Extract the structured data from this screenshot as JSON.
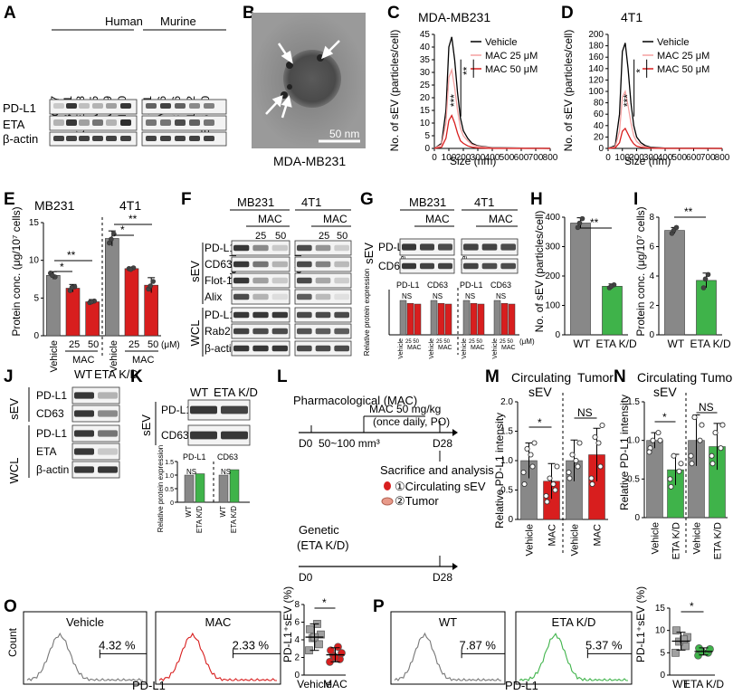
{
  "panels": {
    "A": {
      "label": "A",
      "group1": "Human",
      "group2": "Murine",
      "cell_lines": [
        "MCF7",
        "MB231",
        "SKMEL28",
        "A375",
        "A549",
        "H460",
        "4T1",
        "EMT6",
        "CT26",
        "LL/2",
        "B16F10"
      ],
      "rows": [
        "PD-L1",
        "ETA",
        "β-actin"
      ]
    },
    "B": {
      "label": "B",
      "caption": "MDA-MB231",
      "scale": "50 nm"
    },
    "C": {
      "label": "C",
      "title": "MDA-MB231",
      "xlabel": "Size (nm)",
      "ylabel": "No. of sEV (particles/cell)",
      "sig1": "***",
      "sig2": "**",
      "legend": [
        "Vehicle",
        "MAC 25 μM",
        "MAC 50 μM"
      ],
      "xticks": [
        "0",
        "100",
        "200",
        "300",
        "400",
        "500",
        "600",
        "700",
        "800"
      ],
      "yticks": [
        "0",
        "5",
        "10",
        "15",
        "20",
        "25",
        "30",
        "35",
        "40",
        "45"
      ]
    },
    "D": {
      "label": "D",
      "title": "4T1",
      "xlabel": "Size (nm)",
      "ylabel": "No. of sEV (particles/cell)",
      "sig1": "***",
      "sig2": "*",
      "legend": [
        "Vehicle",
        "MAC 25 μM",
        "MAC 50 μM"
      ],
      "xticks": [
        "0",
        "100",
        "200",
        "300",
        "400",
        "500",
        "600",
        "700",
        "800"
      ],
      "yticks": [
        "0",
        "20",
        "40",
        "60",
        "80",
        "100",
        "120",
        "140",
        "160",
        "180",
        "200"
      ]
    },
    "E": {
      "label": "E",
      "ylabel": "Protein conc. (μg/10⁷ cells)",
      "group1": "MB231",
      "group2": "4T1",
      "yticks": [
        "0",
        "5",
        "10",
        "15"
      ],
      "xlabels": [
        "Vehicle",
        "25",
        "50",
        "Vehicle",
        "25",
        "50"
      ],
      "unit": "(μM)",
      "mac": "MAC",
      "sig": [
        "**",
        "*",
        "**",
        "*"
      ]
    },
    "F": {
      "label": "F",
      "group1": "MB231",
      "group2": "4T1",
      "mac": "MAC",
      "vehicle": "Vehicle",
      "doses": [
        "25",
        "50",
        "25",
        "50"
      ],
      "sev": "sEV",
      "wcl": "WCL",
      "rows": [
        "PD-L1",
        "CD63",
        "Flot-1",
        "Alix",
        "PD-L1",
        "Rab27a",
        "β-actin"
      ]
    },
    "G": {
      "label": "G",
      "group1": "MB231",
      "group2": "4T1",
      "mac": "MAC",
      "vehicle": "Vehicle",
      "sev": "sEV",
      "rows": [
        "PD-L1",
        "CD63"
      ],
      "ylabel": "Relative protein expression",
      "sub": [
        "PD-L1",
        "CD63",
        "PD-L1",
        "CD63"
      ],
      "ns": "NS",
      "doses": "25 50",
      "unit": "(μM)"
    },
    "H": {
      "label": "H",
      "ylabel": "No. of sEV (particles/cell)",
      "yticks": [
        "0",
        "100",
        "200",
        "300",
        "400"
      ],
      "xlabels": [
        "WT",
        "ETA K/D"
      ],
      "sig": "**"
    },
    "I": {
      "label": "I",
      "ylabel": "Protein conc. (μg/10⁷ cells)",
      "yticks": [
        "0",
        "2",
        "4",
        "6",
        "8"
      ],
      "xlabels": [
        "WT",
        "ETA K/D"
      ],
      "sig": "**"
    },
    "J": {
      "label": "J",
      "cols": [
        "WT",
        "ETA K/D"
      ],
      "sev": "sEV",
      "wcl": "WCL",
      "rows": [
        "PD-L1",
        "CD63",
        "PD-L1",
        "ETA",
        "β-actin"
      ]
    },
    "K": {
      "label": "K",
      "cols": [
        "WT",
        "ETA K/D"
      ],
      "sev": "sEV",
      "rows": [
        "PD-L1",
        "CD63"
      ],
      "sub": [
        "PD-L1",
        "CD63"
      ],
      "ylabel": "Relative protein expression",
      "ns": "NS",
      "yticks": [
        "0",
        "0.5",
        "1.0",
        "1.5"
      ],
      "xlabels": [
        "WT",
        "ETA K/D",
        "WT",
        "ETA K/D"
      ]
    },
    "L": {
      "label": "L",
      "pharm": "Pharmacological (MAC)",
      "dose": "MAC 50 mg/kg",
      "dose2": "(once daily, PO)",
      "d0": "D0",
      "d28": "D28",
      "vol": "50~100 mm³",
      "analysis": "Sacrifice and analysis",
      "a1": "①Circulating sEV",
      "a2": "②Tumor",
      "genetic": "Genetic",
      "genetic2": "(ETA K/D)"
    },
    "M": {
      "label": "M",
      "ylabel": "Relative PD-L1 intensity",
      "h1": "Circulating",
      "h1b": "sEV",
      "h2": "Tumor",
      "yticks": [
        "0",
        "0.5",
        "1.0",
        "1.5",
        "2.0"
      ],
      "xlabels": [
        "Vehicle",
        "MAC",
        "Vehicle",
        "MAC"
      ],
      "sig": "*",
      "ns": "NS"
    },
    "N": {
      "label": "N",
      "ylabel": "Relative PD-L1 intensity",
      "h1": "Circulating",
      "h1b": "sEV",
      "h2": "Tumor",
      "yticks": [
        "0",
        "0.5",
        "1.0",
        "1.5"
      ],
      "xlabels": [
        "Vehicle",
        "ETA K/D",
        "Vehicle",
        "ETA K/D"
      ],
      "sig": "*",
      "ns": "NS"
    },
    "O": {
      "label": "O",
      "boxes": [
        "Vehicle",
        "MAC"
      ],
      "pct": [
        "4.32 %",
        "2.33 %"
      ],
      "ylabel_hist": "Count",
      "xlabel_hist": "PD-L1",
      "ylabel": "PD-L1⁺sEV (%)",
      "yticks": [
        "0",
        "2",
        "4",
        "6",
        "8"
      ],
      "xlabels": [
        "Vehicle",
        "MAC"
      ],
      "sig": "*"
    },
    "P": {
      "label": "P",
      "boxes": [
        "WT",
        "ETA K/D"
      ],
      "pct": [
        "7.87 %",
        "5.37 %"
      ],
      "ylabel_hist": "Count",
      "xlabel_hist": "PD-L1",
      "ylabel": "PD-L1⁺sEV (%)",
      "yticks": [
        "0",
        "5",
        "10",
        "15"
      ],
      "xlabels": [
        "WT",
        "ETA K/D"
      ],
      "sig": "*"
    }
  },
  "chart_data": [
    {
      "type": "line",
      "title": "MDA-MB231",
      "xlabel": "Size (nm)",
      "ylabel": "No. of sEV (particles/cell)",
      "xlim": [
        0,
        800
      ],
      "ylim": [
        0,
        45
      ],
      "x": [
        0,
        50,
        80,
        100,
        120,
        140,
        160,
        180,
        200,
        230,
        260,
        300,
        400,
        800
      ],
      "series": [
        {
          "name": "Vehicle",
          "color": "#000000",
          "values": [
            0,
            2,
            15,
            40,
            44,
            35,
            22,
            12,
            7,
            4,
            2,
            1,
            0.3,
            0
          ]
        },
        {
          "name": "MAC 25 μM",
          "color": "#f4a0a0",
          "values": [
            0,
            1.5,
            10,
            28,
            31,
            24,
            15,
            8,
            5,
            3,
            1.5,
            0.8,
            0.2,
            0
          ]
        },
        {
          "name": "MAC 50 μM",
          "color": "#d81e1e",
          "values": [
            0,
            0.5,
            4,
            11,
            13,
            10,
            6,
            3,
            2,
            1,
            0.5,
            0.2,
            0,
            0
          ]
        }
      ]
    },
    {
      "type": "line",
      "title": "4T1",
      "xlabel": "Size (nm)",
      "ylabel": "No. of sEV (particles/cell)",
      "xlim": [
        0,
        800
      ],
      "ylim": [
        0,
        200
      ],
      "x": [
        0,
        50,
        80,
        100,
        120,
        140,
        160,
        180,
        200,
        230,
        260,
        300,
        400,
        800
      ],
      "series": [
        {
          "name": "Vehicle",
          "color": "#000000",
          "values": [
            0,
            5,
            60,
            170,
            185,
            140,
            80,
            40,
            20,
            10,
            5,
            2,
            0.5,
            0
          ]
        },
        {
          "name": "MAC 25 μM",
          "color": "#f4a0a0",
          "values": [
            0,
            3,
            30,
            90,
            100,
            75,
            45,
            22,
            12,
            6,
            3,
            1,
            0.3,
            0
          ]
        },
        {
          "name": "MAC 50 μM",
          "color": "#d81e1e",
          "values": [
            0,
            1,
            10,
            30,
            35,
            25,
            15,
            8,
            4,
            2,
            1,
            0.5,
            0,
            0
          ]
        }
      ]
    },
    {
      "type": "bar",
      "title": "E",
      "ylabel": "Protein conc. (μg/10⁷ cells)",
      "ylim": [
        0,
        15
      ],
      "categories": [
        "Vehicle",
        "MAC 25",
        "MAC 50",
        "Vehicle",
        "MAC 25",
        "MAC 50"
      ],
      "values": [
        8.0,
        6.3,
        4.5,
        12.9,
        8.9,
        6.7
      ],
      "errors": [
        0.5,
        0.5,
        0.3,
        1.0,
        0.2,
        1.0
      ]
    },
    {
      "type": "bar",
      "title": "H",
      "ylabel": "No. of sEV (particles/cell)",
      "ylim": [
        0,
        400
      ],
      "categories": [
        "WT",
        "ETA K/D"
      ],
      "values": [
        380,
        165
      ],
      "errors": [
        18,
        8
      ]
    },
    {
      "type": "bar",
      "title": "I",
      "ylabel": "Protein conc. (μg/10⁷ cells)",
      "ylim": [
        0,
        8
      ],
      "categories": [
        "WT",
        "ETA K/D"
      ],
      "values": [
        7.1,
        3.7
      ],
      "errors": [
        0.2,
        0.5
      ]
    },
    {
      "type": "bar",
      "title": "M",
      "ylabel": "Relative PD-L1 intensity",
      "ylim": [
        0,
        2
      ],
      "categories": [
        "Vehicle",
        "MAC",
        "Vehicle",
        "MAC"
      ],
      "values": [
        1.0,
        0.65,
        1.0,
        1.1
      ],
      "errors": [
        0.3,
        0.3,
        0.35,
        0.45
      ]
    },
    {
      "type": "bar",
      "title": "N",
      "ylabel": "Relative PD-L1 intensity",
      "ylim": [
        0,
        1.5
      ],
      "categories": [
        "Vehicle",
        "ETA K/D",
        "Vehicle",
        "ETA K/D"
      ],
      "values": [
        1.0,
        0.62,
        1.0,
        0.92
      ],
      "errors": [
        0.1,
        0.2,
        0.33,
        0.3
      ]
    },
    {
      "type": "scatter",
      "title": "O",
      "ylabel": "PD-L1⁺sEV (%)",
      "ylim": [
        0,
        8
      ],
      "categories": [
        "Vehicle",
        "MAC"
      ],
      "values": [
        4.3,
        2.3
      ],
      "errors": [
        1.5,
        0.8
      ]
    },
    {
      "type": "scatter",
      "title": "P",
      "ylabel": "PD-L1⁺sEV (%)",
      "ylim": [
        0,
        15
      ],
      "categories": [
        "WT",
        "ETA K/D"
      ],
      "values": [
        7.6,
        5.3
      ],
      "errors": [
        2.0,
        0.8
      ]
    }
  ]
}
